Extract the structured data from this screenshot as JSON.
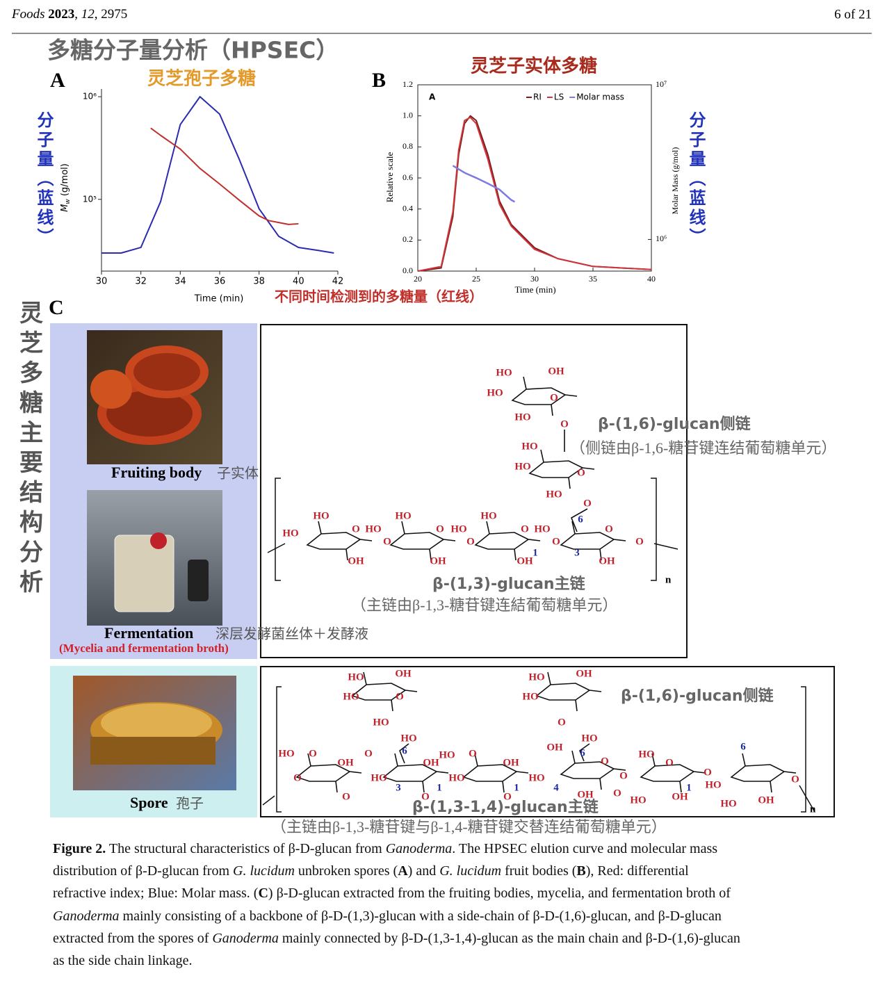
{
  "header": {
    "citation": [
      "Foods ",
      "2023",
      ", ",
      "12",
      ", 2975"
    ],
    "page": "6 of 21"
  },
  "figure_title": "多糖分子量分析（HPSEC）",
  "chart_data": [
    {
      "type": "line",
      "panel_label": "A",
      "title": "灵芝孢子多糖",
      "x_label": "Time (min)",
      "y_label": [
        "M",
        "w",
        " (g/mol)"
      ],
      "annotations": [
        "分子量（蓝线）",
        "不同时间检测到的多糖量（红线）"
      ],
      "log_y": true,
      "xlim": [
        30,
        42
      ],
      "xticks": [
        30,
        32,
        34,
        36,
        38,
        40,
        42
      ],
      "ylim": [
        20000,
        1100000
      ],
      "yticks": [
        {
          "value": 100000,
          "label": "10⁵"
        },
        {
          "value": 1000000,
          "label": "10⁶"
        }
      ],
      "series": [
        {
          "color": "#2b2bb0",
          "x": [
            30,
            31,
            32,
            33,
            34,
            35,
            36,
            37,
            38,
            39,
            40,
            41,
            41.8
          ],
          "values": [
            30000,
            30000,
            34000,
            95000,
            535000,
            1000000,
            676000,
            244000,
            81000,
            43600,
            34000,
            31800,
            30000
          ]
        },
        {
          "color": "#c0302b",
          "x": [
            32.5,
            33,
            34,
            35,
            36,
            37,
            38,
            38.5,
            39,
            39.5,
            40
          ],
          "values": [
            494000,
            420000,
            309000,
            200000,
            141000,
            98000,
            69000,
            62000,
            59500,
            57000,
            57800
          ]
        }
      ]
    },
    {
      "type": "line",
      "panel_label": "B",
      "title": "灵芝子实体多糖",
      "inset_label": "A",
      "x_label": "Time (min)",
      "y_label": "Relative scale",
      "y2_label": "Molar Mass (g/mol)",
      "annotations": [
        "分子量（蓝线）"
      ],
      "xlim": [
        20,
        40
      ],
      "xticks": [
        20,
        25,
        30,
        35,
        40
      ],
      "ylim": [
        0,
        1.2
      ],
      "yticks": [
        {
          "value": 0,
          "label": "0.0"
        },
        0.2,
        0.4,
        0.6,
        0.8,
        {
          "value": 1,
          "label": "1.0"
        },
        1.2
      ],
      "y2_log": true,
      "y2lim": [
        624000,
        10000000
      ],
      "y2ticks": [
        {
          "value": 1000000,
          "label": "10⁶"
        },
        {
          "value": 10000000,
          "label": "10⁷"
        }
      ],
      "legend": "upper right",
      "series": [
        {
          "name": "RI",
          "color": "#7a1c1c",
          "x": [
            20,
            22,
            23,
            23.5,
            24,
            24.5,
            25,
            26,
            27,
            28,
            30,
            32,
            35,
            40
          ],
          "values": [
            0,
            0.02,
            0.35,
            0.75,
            0.95,
            1.0,
            0.97,
            0.75,
            0.45,
            0.3,
            0.15,
            0.08,
            0.03,
            0.01
          ]
        },
        {
          "name": "LS",
          "color": "#d0353a",
          "x": [
            20,
            22,
            23,
            23.5,
            24,
            24.5,
            25,
            26,
            27,
            28,
            30,
            32,
            35,
            40
          ],
          "values": [
            0,
            0.03,
            0.38,
            0.78,
            0.97,
            0.99,
            0.95,
            0.72,
            0.43,
            0.29,
            0.14,
            0.08,
            0.03,
            0.01
          ]
        },
        {
          "name": "Molar mass",
          "color": "#7b7be0",
          "axis": "y2",
          "x": [
            23,
            24,
            25,
            26,
            27,
            28,
            28.3
          ],
          "values": [
            3000000,
            2700000,
            2500000,
            2300000,
            2100000,
            1800000,
            1750000
          ]
        }
      ]
    }
  ],
  "panel_c": {
    "label": "C",
    "side_title": "灵芝多糖主要结构分析",
    "sources": [
      {
        "name": "Fruiting body",
        "name_zh": "子实体"
      },
      {
        "name": "Fermentation",
        "name_zh": "深层发酵菌丝体＋发酵液",
        "detail": "(Mycelia and fermentation broth)"
      },
      {
        "name": "Spore",
        "name_zh": "孢子"
      }
    ],
    "structure_1": {
      "side_chain": "β-(1,6)-glucan侧链",
      "side_chain_note": "（侧链由β-1,6-糖苷键连结葡萄糖单元）",
      "main_chain": "β-(1,3)-glucan主链",
      "main_chain_note": "（主链由β-1,3-糖苷键连結葡萄糖单元）",
      "repeat": "n",
      "atoms": [
        "HO",
        "OH",
        "HO",
        "O",
        "HO",
        "O",
        "HO",
        "HO",
        "O",
        "HO",
        "O",
        "HO",
        "HO",
        "O",
        "OH",
        "O",
        "HO",
        "HO",
        "O",
        "OH",
        "O",
        "HO",
        "HO",
        "O",
        "OH",
        "O",
        "HO",
        "O",
        "OH",
        "O"
      ],
      "locants": [
        "6",
        "1",
        "3"
      ]
    },
    "structure_2": {
      "side_chain": "β-(1,6)-glucan侧链",
      "main_chain": "β-(1,3-1,4)-glucan主链",
      "main_chain_note": "（主链由β-1,3-糖苷键与β-1,4-糖苷键交替连结葡萄糖单元）",
      "repeat": "n",
      "atoms": [
        "HO",
        "OH",
        "HO",
        "HO",
        "O",
        "HO",
        "OH",
        "HO",
        "HO",
        "O",
        "HO",
        "HO",
        "O",
        "O",
        "OH",
        "O",
        "HO",
        "O",
        "OH",
        "O",
        "HO",
        "HO",
        "O",
        "OH",
        "O",
        "HO",
        "OH",
        "OH",
        "O",
        "O",
        "HO",
        "O",
        "HO",
        "OH",
        "O",
        "HO",
        "O",
        "HO",
        "OH",
        "O"
      ],
      "locants": [
        "6",
        "3",
        "1",
        "1",
        "6",
        "4",
        "1",
        "6"
      ]
    }
  },
  "caption": [
    "Figure 2.",
    " The structural characteristics of β-D-glucan from ",
    "Ganoderma",
    ". The HPSEC elution curve and molecular mass distribution of β-D-glucan from ",
    "G. lucidum",
    " unbroken spores (",
    "A",
    ") and ",
    "G. lucidum",
    " fruit bodies (",
    "B",
    "), Red: differential refractive index; Blue: Molar mass. (",
    "C",
    ") β-D-glucan extracted from the fruiting bodies, mycelia, and fermentation broth of ",
    "Ganoderma",
    " mainly consisting of a backbone of β-D-(1,3)-glucan with a side-chain of β-D-(1,6)-glucan, and β-D-glucan extracted from the spores of ",
    "Ganoderma",
    " mainly connected by β-D-(1,3-1,4)-glucan as the main chain and β-D-(1,6)-glucan as the side chain linkage."
  ]
}
